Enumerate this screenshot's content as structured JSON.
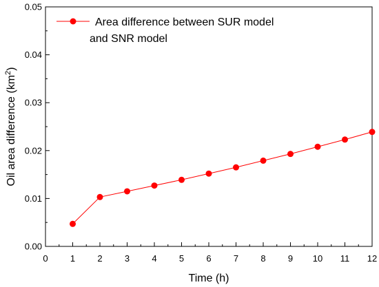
{
  "chart_data": {
    "type": "line",
    "xlabel": "Time (h)",
    "ylabel": "Oil area difference (km",
    "ylabel_sup": "2",
    "ylabel_close": ")",
    "xlim": [
      0,
      12
    ],
    "ylim": [
      0,
      0.05
    ],
    "xticks": [
      "0",
      "1",
      "2",
      "3",
      "4",
      "5",
      "6",
      "7",
      "8",
      "9",
      "10",
      "11",
      "12"
    ],
    "yticks": [
      "0.00",
      "0.01",
      "0.02",
      "0.03",
      "0.04",
      "0.05"
    ],
    "series": [
      {
        "name_lines": [
          "Area difference between SUR model",
          "and SNR model"
        ],
        "color": "#ff0000",
        "marker": "circle",
        "x": [
          1,
          2,
          3,
          4,
          5,
          6,
          7,
          8,
          9,
          10,
          11,
          12
        ],
        "y": [
          0.0047,
          0.0103,
          0.0115,
          0.0127,
          0.0139,
          0.0152,
          0.0165,
          0.0179,
          0.0193,
          0.0208,
          0.0223,
          0.0239
        ]
      }
    ],
    "legend_position": "top-left",
    "grid": false
  }
}
